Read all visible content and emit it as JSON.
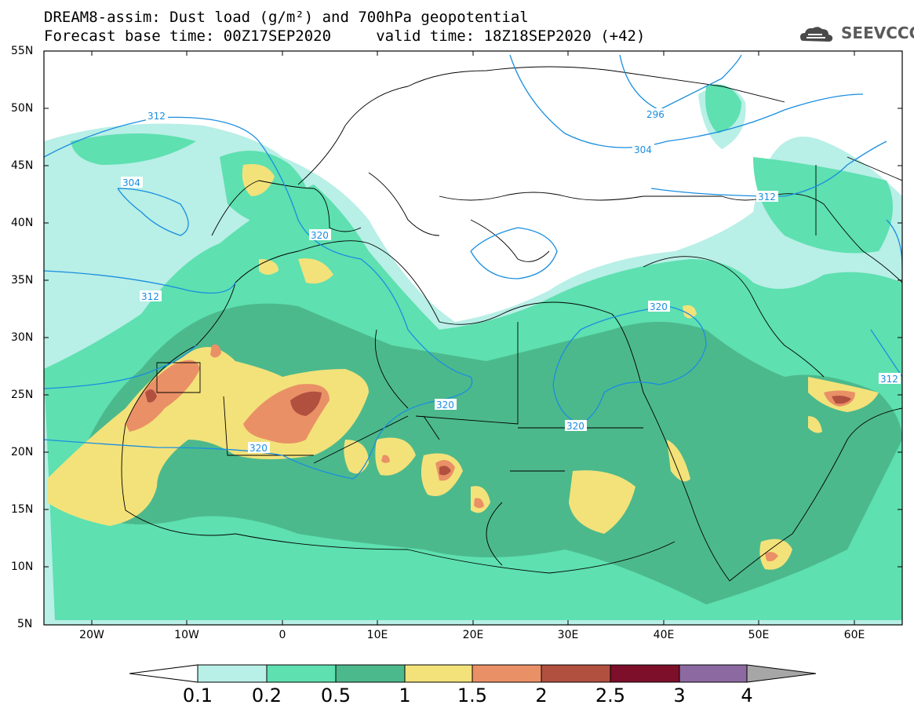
{
  "header": {
    "title_line1": "DREAM8-assim: Dust load (g/m²) and 700hPa geopotential",
    "title_line2": "Forecast base time: 00Z17SEP2020     valid time: 18Z18SEP2020 (+42)",
    "logo_text": "SEEVCCC"
  },
  "map": {
    "lat_labels": [
      "55N",
      "50N",
      "45N",
      "40N",
      "35N",
      "30N",
      "25N",
      "20N",
      "15N",
      "10N",
      "5N"
    ],
    "lon_labels": [
      "20W",
      "10W",
      "0",
      "10E",
      "20E",
      "30E",
      "40E",
      "50E",
      "60E"
    ],
    "contour_labels": [
      "312",
      "304",
      "320",
      "312",
      "320",
      "320",
      "320",
      "296",
      "304",
      "312",
      "312",
      "320"
    ]
  },
  "colorbar": {
    "labels": [
      "0.1",
      "0.2",
      "0.5",
      "1",
      "1.5",
      "2",
      "2.5",
      "3",
      "4"
    ],
    "colors": [
      "#b8efe6",
      "#5ee0b0",
      "#4cb98c",
      "#f3e27a",
      "#ea9066",
      "#b25040",
      "#7d0f2b",
      "#8c6aa1",
      "#a6a6a6"
    ]
  }
}
